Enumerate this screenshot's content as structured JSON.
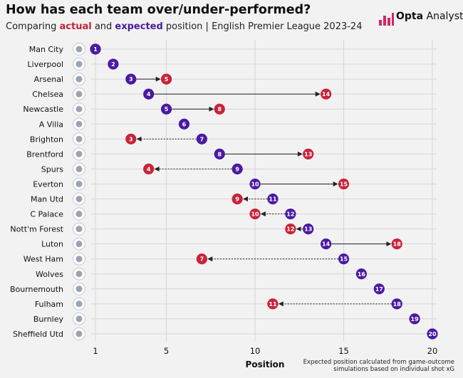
{
  "header": {
    "title": "How has each team over/under-performed?",
    "subtitle_pre": "Comparing ",
    "subtitle_actual": "actual",
    "subtitle_mid": " and ",
    "subtitle_expected": "expected",
    "subtitle_post": " position | English Premier League 2023-24",
    "logo_bold": "Opta",
    "logo_rest": " Analyst"
  },
  "footnote": {
    "line1": "Expected position calculated from game-outcome",
    "line2": "simulations based on individual shot xG"
  },
  "colors": {
    "actual": "#c8233a",
    "expected": "#4a1aa3",
    "grid": "#d6d6d6"
  },
  "chart_data": {
    "type": "dumbbell",
    "xlabel": "Position",
    "xlim": [
      1,
      20
    ],
    "xticks": [
      1,
      5,
      10,
      15,
      20
    ],
    "teams": [
      {
        "name": "Man City",
        "expected": 1,
        "actual": 1
      },
      {
        "name": "Liverpool",
        "expected": 2,
        "actual": 2
      },
      {
        "name": "Arsenal",
        "expected": 3,
        "actual": 5
      },
      {
        "name": "Chelsea",
        "expected": 4,
        "actual": 14
      },
      {
        "name": "Newcastle",
        "expected": 5,
        "actual": 8
      },
      {
        "name": "A Villa",
        "expected": 6,
        "actual": 6
      },
      {
        "name": "Brighton",
        "expected": 7,
        "actual": 3
      },
      {
        "name": "Brentford",
        "expected": 8,
        "actual": 13
      },
      {
        "name": "Spurs",
        "expected": 9,
        "actual": 4
      },
      {
        "name": "Everton",
        "expected": 10,
        "actual": 15
      },
      {
        "name": "Man Utd",
        "expected": 11,
        "actual": 9
      },
      {
        "name": "C Palace",
        "expected": 12,
        "actual": 10
      },
      {
        "name": "Nott'm Forest",
        "expected": 13,
        "actual": 12
      },
      {
        "name": "Luton",
        "expected": 14,
        "actual": 18
      },
      {
        "name": "West Ham",
        "expected": 15,
        "actual": 7
      },
      {
        "name": "Wolves",
        "expected": 16,
        "actual": 16
      },
      {
        "name": "Bournemouth",
        "expected": 17,
        "actual": 17
      },
      {
        "name": "Fulham",
        "expected": 18,
        "actual": 11
      },
      {
        "name": "Burnley",
        "expected": 19,
        "actual": 19
      },
      {
        "name": "Sheffield Utd",
        "expected": 20,
        "actual": 20
      }
    ]
  }
}
